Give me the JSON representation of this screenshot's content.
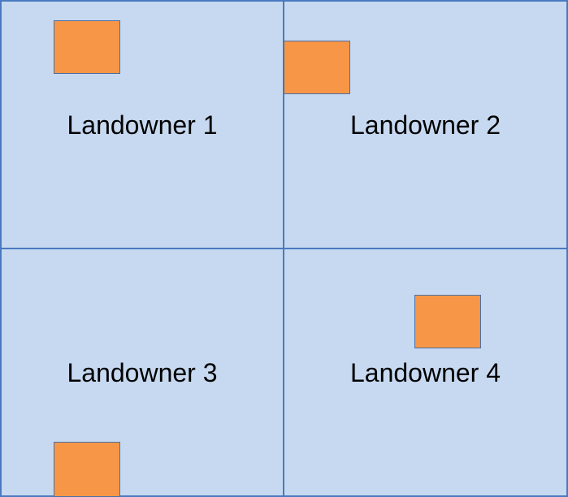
{
  "colors": {
    "parcel_fill": "#c7d9f0",
    "parcel_border": "#4a7ac0",
    "building_fill": "#f79646",
    "building_border": "#4a6fa5"
  },
  "parcels": [
    {
      "label": "Landowner 1"
    },
    {
      "label": "Landowner 2"
    },
    {
      "label": "Landowner 3"
    },
    {
      "label": "Landowner 4"
    }
  ]
}
